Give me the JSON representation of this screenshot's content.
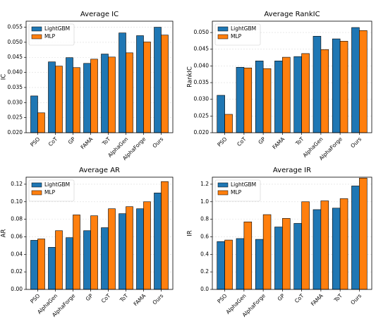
{
  "chart_data": [
    {
      "type": "bar",
      "title": "Average IC",
      "ylabel": "IC",
      "categories": [
        "PSO",
        "CoT",
        "GP",
        "FAMA",
        "ToT",
        "AlphaGen",
        "AlphaForge",
        "Ours"
      ],
      "series": [
        {
          "name": "LightGBM",
          "color": "#1f77b4",
          "values": [
            0.0322,
            0.0435,
            0.0449,
            0.043,
            0.0461,
            0.0531,
            0.0522,
            0.055
          ]
        },
        {
          "name": "MLP",
          "color": "#ff7f0e",
          "values": [
            0.0266,
            0.0421,
            0.0416,
            0.0444,
            0.0451,
            0.0465,
            0.0501,
            0.0524
          ]
        }
      ],
      "ylim": [
        0.02,
        0.057
      ],
      "yticks": [
        {
          "value": 0.02,
          "label": "0.020"
        },
        {
          "value": 0.025,
          "label": "0.025"
        },
        {
          "value": 0.03,
          "label": "0.030"
        },
        {
          "value": 0.035,
          "label": "0.035"
        },
        {
          "value": 0.04,
          "label": "0.040"
        },
        {
          "value": 0.045,
          "label": "0.045"
        },
        {
          "value": 0.05,
          "label": "0.050"
        },
        {
          "value": 0.055,
          "label": "0.055"
        }
      ],
      "grid": true,
      "legend": "upper left"
    },
    {
      "type": "bar",
      "title": "Average RankIC",
      "ylabel": "RankIC",
      "categories": [
        "PSO",
        "CoT",
        "GP",
        "FAMA",
        "ToT",
        "AlphaGen",
        "AlphaForge",
        "Ours"
      ],
      "series": [
        {
          "name": "LightGBM",
          "color": "#1f77b4",
          "values": [
            0.0312,
            0.0396,
            0.0415,
            0.0415,
            0.0428,
            0.0489,
            0.0481,
            0.0515
          ]
        },
        {
          "name": "MLP",
          "color": "#ff7f0e",
          "values": [
            0.0255,
            0.0394,
            0.0392,
            0.0426,
            0.0437,
            0.0449,
            0.0474,
            0.0506
          ]
        }
      ],
      "ylim": [
        0.02,
        0.0534
      ],
      "yticks": [
        {
          "value": 0.02,
          "label": "0.020"
        },
        {
          "value": 0.025,
          "label": "0.025"
        },
        {
          "value": 0.03,
          "label": "0.030"
        },
        {
          "value": 0.035,
          "label": "0.035"
        },
        {
          "value": 0.04,
          "label": "0.040"
        },
        {
          "value": 0.045,
          "label": "0.045"
        },
        {
          "value": 0.05,
          "label": "0.050"
        }
      ],
      "grid": true,
      "legend": "upper left"
    },
    {
      "type": "bar",
      "title": "Average AR",
      "ylabel": "AR",
      "categories": [
        "PSO",
        "AlphaGen",
        "AlphaForge",
        "GP",
        "CoT",
        "ToT",
        "FAMA",
        "Ours"
      ],
      "series": [
        {
          "name": "LightGBM",
          "color": "#1f77b4",
          "values": [
            0.056,
            0.048,
            0.059,
            0.067,
            0.0704,
            0.0864,
            0.092,
            0.11
          ]
        },
        {
          "name": "MLP",
          "color": "#ff7f0e",
          "values": [
            0.0576,
            0.067,
            0.085,
            0.084,
            0.092,
            0.0944,
            0.1,
            0.123
          ]
        }
      ],
      "ylim": [
        0,
        0.128
      ],
      "yticks": [
        {
          "value": 0,
          "label": "0.00"
        },
        {
          "value": 0.02,
          "label": "0.02"
        },
        {
          "value": 0.04,
          "label": "0.04"
        },
        {
          "value": 0.06,
          "label": "0.06"
        },
        {
          "value": 0.08,
          "label": "0.08"
        },
        {
          "value": 0.1,
          "label": "0.10"
        },
        {
          "value": 0.12,
          "label": "0.12"
        }
      ],
      "grid": true,
      "legend": "upper left"
    },
    {
      "type": "bar",
      "title": "Average IR",
      "ylabel": "IR",
      "categories": [
        "PSO",
        "AlphaGen",
        "AlphaForge",
        "GP",
        "CoT",
        "FAMA",
        "ToT",
        "Ours"
      ],
      "series": [
        {
          "name": "LightGBM",
          "color": "#1f77b4",
          "values": [
            0.546,
            0.58,
            0.571,
            0.712,
            0.753,
            0.91,
            0.927,
            1.18
          ]
        },
        {
          "name": "MLP",
          "color": "#ff7f0e",
          "values": [
            0.563,
            0.77,
            0.853,
            0.81,
            1.0,
            1.01,
            1.035,
            1.27
          ]
        }
      ],
      "ylim": [
        0,
        1.28
      ],
      "yticks": [
        {
          "value": 0,
          "label": "0.0"
        },
        0.2,
        0.4,
        0.6,
        0.8,
        {
          "value": 1,
          "label": "1.0"
        },
        1.2
      ],
      "grid": true,
      "legend": "upper left"
    }
  ]
}
